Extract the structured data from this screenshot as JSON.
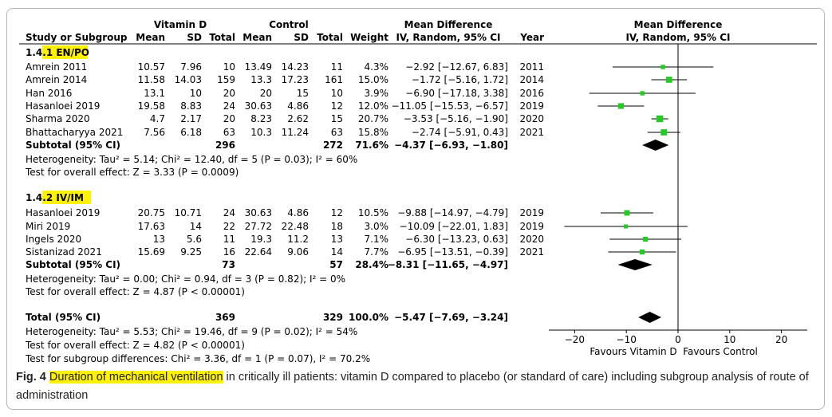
{
  "header": {
    "group1": "Vitamin D",
    "group2": "Control",
    "md_title": "Mean Difference",
    "md_method": "IV, Random, 95% CI",
    "col_study": "Study or Subgroup",
    "col_mean": "Mean",
    "col_sd": "SD",
    "col_total": "Total",
    "col_weight": "Weight",
    "col_year": "Year",
    "plot_title": "Mean Difference",
    "plot_method": "IV, Random, 95% CI"
  },
  "colors": {
    "marker": "#22cc22",
    "highlight": "#fff200",
    "frame": "#b5b5b5"
  },
  "subgroups": [
    {
      "id_prefix": "1.4.",
      "id_highlighted": "1 EN/PO",
      "studies": [
        {
          "name": "Amrein 2011",
          "vd_mean": "10.57",
          "vd_sd": "7.96",
          "vd_total": "10",
          "c_mean": "13.49",
          "c_sd": "14.23",
          "c_total": "11",
          "weight": "4.3%",
          "ci_text": "−2.92 [−12.67, 6.83]",
          "year": "2011"
        },
        {
          "name": "Amrein 2014",
          "vd_mean": "11.58",
          "vd_sd": "14.03",
          "vd_total": "159",
          "c_mean": "13.3",
          "c_sd": "17.23",
          "c_total": "161",
          "weight": "15.0%",
          "ci_text": "−1.72 [−5.16, 1.72]",
          "year": "2014"
        },
        {
          "name": "Han 2016",
          "vd_mean": "13.1",
          "vd_sd": "10",
          "vd_total": "20",
          "c_mean": "20",
          "c_sd": "15",
          "c_total": "10",
          "weight": "3.9%",
          "ci_text": "−6.90 [−17.18, 3.38]",
          "year": "2016"
        },
        {
          "name": "Hasanloei 2019",
          "vd_mean": "19.58",
          "vd_sd": "8.83",
          "vd_total": "24",
          "c_mean": "30.63",
          "c_sd": "4.86",
          "c_total": "12",
          "weight": "12.0%",
          "ci_text": "−11.05 [−15.53, −6.57]",
          "year": "2019"
        },
        {
          "name": "Sharma 2020",
          "vd_mean": "4.7",
          "vd_sd": "2.17",
          "vd_total": "20",
          "c_mean": "8.23",
          "c_sd": "2.62",
          "c_total": "15",
          "weight": "20.7%",
          "ci_text": "−3.53 [−5.16, −1.90]",
          "year": "2020"
        },
        {
          "name": "Bhattacharyya 2021",
          "vd_mean": "7.56",
          "vd_sd": "6.18",
          "vd_total": "63",
          "c_mean": "10.3",
          "c_sd": "11.24",
          "c_total": "63",
          "weight": "15.8%",
          "ci_text": "−2.74 [−5.91, 0.43]",
          "year": "2021"
        }
      ],
      "subtotal": {
        "label": "Subtotal (95% CI)",
        "vd_total": "296",
        "c_total": "272",
        "weight": "71.6%",
        "ci_text": "−4.37 [−6.93, −1.80]"
      },
      "heterogeneity": "Heterogeneity: Tau² = 5.14; Chi² = 12.40, df = 5 (P = 0.03); I² = 60%",
      "overall": "Test for overall effect: Z = 3.33 (P = 0.0009)"
    },
    {
      "id_prefix": "1.4.",
      "id_highlighted": "2 IV/IM",
      "studies": [
        {
          "name": "Hasanloei 2019",
          "vd_mean": "20.75",
          "vd_sd": "10.71",
          "vd_total": "24",
          "c_mean": "30.63",
          "c_sd": "4.86",
          "c_total": "12",
          "weight": "10.5%",
          "ci_text": "−9.88 [−14.97, −4.79]",
          "year": "2019"
        },
        {
          "name": "Miri 2019",
          "vd_mean": "17.63",
          "vd_sd": "14",
          "vd_total": "22",
          "c_mean": "27.72",
          "c_sd": "22.48",
          "c_total": "18",
          "weight": "3.0%",
          "ci_text": "−10.09 [−22.01, 1.83]",
          "year": "2019"
        },
        {
          "name": "Ingels 2020",
          "vd_mean": "13",
          "vd_sd": "5.6",
          "vd_total": "11",
          "c_mean": "19.3",
          "c_sd": "11.2",
          "c_total": "13",
          "weight": "7.1%",
          "ci_text": "−6.30 [−13.23, 0.63]",
          "year": "2020"
        },
        {
          "name": "Sistanizad 2021",
          "vd_mean": "15.69",
          "vd_sd": "9.25",
          "vd_total": "16",
          "c_mean": "22.64",
          "c_sd": "9.06",
          "c_total": "14",
          "weight": "7.7%",
          "ci_text": "−6.95 [−13.51, −0.39]",
          "year": "2021"
        }
      ],
      "subtotal": {
        "label": "Subtotal (95% CI)",
        "vd_total": "73",
        "c_total": "57",
        "weight": "28.4%",
        "ci_text": "−8.31 [−11.65, −4.97]"
      },
      "heterogeneity": "Heterogeneity: Tau² = 0.00; Chi² = 0.94, df = 3 (P = 0.82); I² = 0%",
      "overall": "Test for overall effect: Z = 4.87 (P < 0.00001)"
    }
  ],
  "total": {
    "label": "Total (95% CI)",
    "vd_total": "369",
    "c_total": "329",
    "weight": "100.0%",
    "ci_text": "−5.47 [−7.69, −3.24]",
    "heterogeneity": "Heterogeneity: Tau² = 5.53; Chi² = 19.46, df = 9 (P = 0.02); I² = 54%",
    "overall": "Test for overall effect: Z = 4.82 (P < 0.00001)",
    "subgroup_diff": "Test for subgroup differences: Chi² = 3.36, df = 1 (P = 0.07), I² = 70.2%"
  },
  "axis": {
    "favours_left": "Favours Vitamin D",
    "favours_right": "Favours Control"
  },
  "caption": {
    "fig_label": "Fig. 4",
    "highlighted": "Duration of mechanical ventilation",
    "rest": " in critically ill patients: vitamin D compared to placebo (or standard of care) including subgroup analysis of route of administration"
  },
  "chart_data": {
    "type": "forest",
    "xlim": [
      -25,
      25
    ],
    "xticks": [
      -20,
      -10,
      0,
      10,
      20
    ],
    "xtick_labels": [
      "−20",
      "−10",
      "0",
      "10",
      "20"
    ],
    "null_line": 0,
    "studies": [
      {
        "name": "Amrein 2011",
        "subgroup": "EN/PO",
        "md": -2.92,
        "lo": -12.67,
        "hi": 6.83,
        "weight": 4.3
      },
      {
        "name": "Amrein 2014",
        "subgroup": "EN/PO",
        "md": -1.72,
        "lo": -5.16,
        "hi": 1.72,
        "weight": 15.0
      },
      {
        "name": "Han 2016",
        "subgroup": "EN/PO",
        "md": -6.9,
        "lo": -17.18,
        "hi": 3.38,
        "weight": 3.9
      },
      {
        "name": "Hasanloei 2019",
        "subgroup": "EN/PO",
        "md": -11.05,
        "lo": -15.53,
        "hi": -6.57,
        "weight": 12.0
      },
      {
        "name": "Sharma 2020",
        "subgroup": "EN/PO",
        "md": -3.53,
        "lo": -5.16,
        "hi": -1.9,
        "weight": 20.7
      },
      {
        "name": "Bhattacharyya 2021",
        "subgroup": "EN/PO",
        "md": -2.74,
        "lo": -5.91,
        "hi": 0.43,
        "weight": 15.8
      },
      {
        "name": "Hasanloei 2019",
        "subgroup": "IV/IM",
        "md": -9.88,
        "lo": -14.97,
        "hi": -4.79,
        "weight": 10.5
      },
      {
        "name": "Miri 2019",
        "subgroup": "IV/IM",
        "md": -10.09,
        "lo": -22.01,
        "hi": 1.83,
        "weight": 3.0
      },
      {
        "name": "Ingels 2020",
        "subgroup": "IV/IM",
        "md": -6.3,
        "lo": -13.23,
        "hi": 0.63,
        "weight": 7.1
      },
      {
        "name": "Sistanizad 2021",
        "subgroup": "IV/IM",
        "md": -6.95,
        "lo": -13.51,
        "hi": -0.39,
        "weight": 7.7
      }
    ],
    "pooled": [
      {
        "name": "Subtotal EN/PO",
        "md": -4.37,
        "lo": -6.93,
        "hi": -1.8
      },
      {
        "name": "Subtotal IV/IM",
        "md": -8.31,
        "lo": -11.65,
        "hi": -4.97
      },
      {
        "name": "Total",
        "md": -5.47,
        "lo": -7.69,
        "hi": -3.24
      }
    ]
  }
}
